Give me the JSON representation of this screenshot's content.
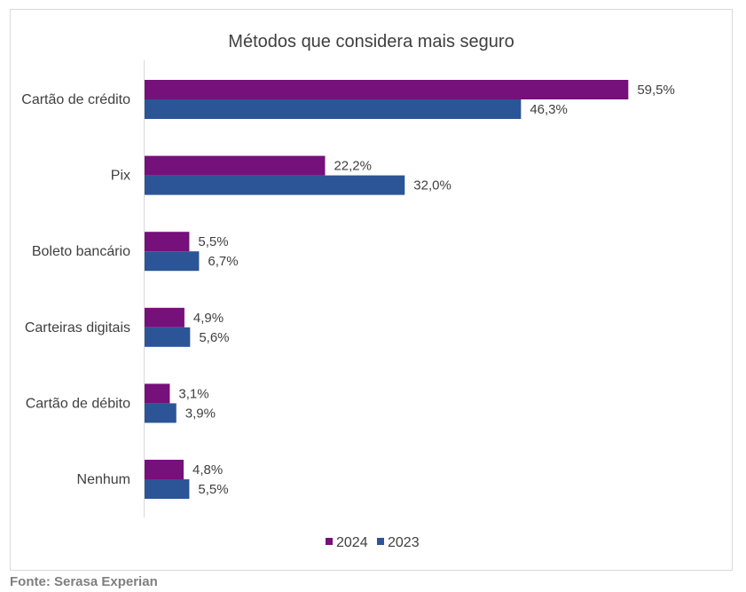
{
  "chart_data": {
    "type": "bar",
    "orientation": "horizontal",
    "title": "Métodos que considera mais seguro",
    "categories": [
      "Cartão de crédito",
      "Pix",
      "Boleto bancário",
      "Carteiras digitais",
      "Cartão de débito",
      "Nenhum"
    ],
    "series": [
      {
        "name": "2024",
        "color": "#76107a",
        "values": [
          59.5,
          22.2,
          5.5,
          4.9,
          3.1,
          4.8
        ],
        "labels": [
          "59,5%",
          "22,2%",
          "5,5%",
          "4,9%",
          "3,1%",
          "4,8%"
        ]
      },
      {
        "name": "2023",
        "color": "#2b5596",
        "values": [
          46.3,
          32.0,
          6.7,
          5.6,
          3.9,
          5.5
        ],
        "labels": [
          "46,3%",
          "32,0%",
          "6,7%",
          "5,6%",
          "3,9%",
          "5,5%"
        ]
      }
    ],
    "xlim": [
      0,
      70
    ],
    "grid": false,
    "legend": "bottom"
  },
  "source": "Fonte: Serasa Experian"
}
